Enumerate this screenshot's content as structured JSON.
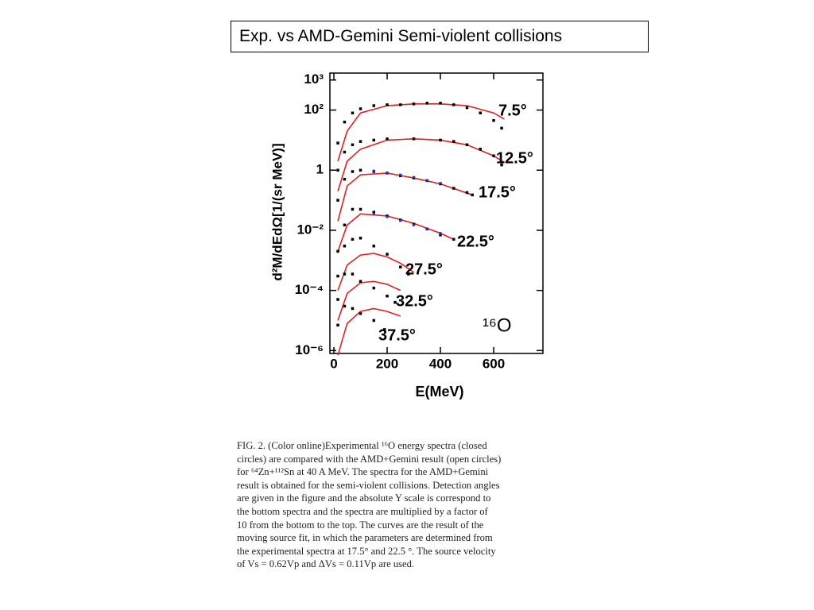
{
  "slide_title": "Exp. vs AMD-Gemini Semi-violent collisions",
  "chart_data": {
    "type": "scatter",
    "annotation": "¹⁶O",
    "x_label": "E(MeV)",
    "y_label": "d²M/dEdΩ[1/(sr MeV)]",
    "xlim": [
      -15,
      785
    ],
    "xticks": [
      0,
      200,
      400,
      600
    ],
    "ylim": [
      8e-07,
      1700
    ],
    "log_y": true,
    "yticks": [
      {
        "value": 1000,
        "label": "10³"
      },
      {
        "value": 100,
        "label": "10²"
      },
      1,
      {
        "value": 0.01,
        "label": "10⁻²"
      },
      {
        "value": 0.0001,
        "label": "10⁻⁴"
      },
      {
        "value": 1e-06,
        "label": "10⁻⁶"
      }
    ],
    "series": [
      {
        "name": "7.5°",
        "color": "#000000",
        "x": [
          15,
          40,
          70,
          100,
          150,
          200,
          250,
          300,
          350,
          400,
          450,
          500,
          550,
          600,
          630
        ],
        "values": [
          8,
          40,
          80,
          110,
          140,
          150,
          150,
          160,
          170,
          170,
          150,
          120,
          80,
          45,
          25
        ]
      },
      {
        "name": "12.5°",
        "color": "#000000",
        "x": [
          15,
          40,
          70,
          100,
          150,
          200,
          300,
          400,
          450,
          500,
          550,
          600,
          630
        ],
        "values": [
          1,
          4,
          7,
          9,
          10,
          11,
          11,
          10,
          9,
          7,
          5,
          3,
          1.5
        ]
      },
      {
        "name": "17.5°",
        "color": "#000000",
        "x": [
          15,
          40,
          70,
          100,
          150,
          200,
          250,
          300,
          350,
          400,
          450,
          500,
          520
        ],
        "values": [
          0.1,
          0.5,
          0.9,
          1,
          0.9,
          0.8,
          0.65,
          0.55,
          0.45,
          0.35,
          0.25,
          0.18,
          0.15
        ]
      },
      {
        "name": "22.5°",
        "color": "#000000",
        "x": [
          15,
          40,
          70,
          100,
          150,
          200,
          250,
          300,
          350,
          400,
          450
        ],
        "values": [
          0.002,
          0.015,
          0.05,
          0.05,
          0.04,
          0.03,
          0.022,
          0.016,
          0.011,
          0.007,
          0.005
        ]
      },
      {
        "name": "27.5°",
        "color": "#000000",
        "x": [
          15,
          40,
          70,
          100,
          150,
          200,
          250,
          280
        ],
        "values": [
          0.0003,
          0.003,
          0.005,
          0.0055,
          0.003,
          0.0016,
          0.0006,
          0.00035
        ]
      },
      {
        "name": "32.5°",
        "color": "#000000",
        "x": [
          15,
          40,
          70,
          100,
          150,
          200,
          230
        ],
        "values": [
          5e-05,
          0.00035,
          0.00035,
          0.0002,
          0.00012,
          6.5e-05,
          4e-05
        ]
      },
      {
        "name": "37.5°",
        "color": "#000000",
        "x": [
          15,
          40,
          70,
          100,
          150,
          190
        ],
        "values": [
          7e-06,
          3e-05,
          2.5e-05,
          1.7e-05,
          1e-05,
          5e-06
        ]
      }
    ],
    "fit_curves": [
      {
        "color": "#e02020",
        "x": [
          15,
          50,
          100,
          200,
          300,
          400,
          500,
          600,
          640
        ],
        "values": [
          2,
          20,
          80,
          140,
          160,
          160,
          140,
          80,
          50
        ]
      },
      {
        "color": "#e02020",
        "x": [
          15,
          50,
          100,
          200,
          300,
          400,
          500,
          600,
          640
        ],
        "values": [
          0.2,
          2,
          5,
          10,
          11,
          10,
          7,
          3,
          1.8
        ]
      },
      {
        "color": "#e02020",
        "x": [
          15,
          50,
          100,
          200,
          300,
          400,
          520
        ],
        "values": [
          0.02,
          0.3,
          0.7,
          0.8,
          0.55,
          0.35,
          0.15
        ]
      },
      {
        "color": "#e02020",
        "x": [
          15,
          50,
          100,
          200,
          300,
          400,
          450
        ],
        "values": [
          0.002,
          0.015,
          0.035,
          0.03,
          0.017,
          0.008,
          0.005
        ]
      },
      {
        "color": "#e02020",
        "x": [
          15,
          50,
          100,
          150,
          200,
          250,
          300
        ],
        "values": [
          0.0001,
          0.0007,
          0.0015,
          0.0017,
          0.0013,
          0.0008,
          0.0004
        ]
      },
      {
        "color": "#e02020",
        "x": [
          15,
          50,
          100,
          150,
          200,
          250
        ],
        "values": [
          1e-05,
          8e-05,
          0.00018,
          0.0002,
          0.00016,
          0.0001
        ]
      },
      {
        "color": "#e02020",
        "x": [
          15,
          50,
          100,
          150,
          200,
          250
        ],
        "values": [
          7e-07,
          8e-06,
          2e-05,
          2.5e-05,
          2e-05,
          1.4e-05
        ]
      }
    ],
    "amd_points": [
      {
        "color": "#2030e0",
        "x": [
          150,
          200,
          250,
          300,
          350,
          400
        ],
        "values": [
          0.95,
          0.8,
          0.7,
          0.58,
          0.45,
          0.37
        ]
      },
      {
        "color": "#2030e0",
        "x": [
          150,
          200,
          250,
          300,
          350,
          400
        ],
        "values": [
          0.035,
          0.028,
          0.021,
          0.015,
          0.011,
          0.008
        ]
      }
    ]
  },
  "caption": {
    "lines": [
      "FIG. 2.  (Color online)Experimental ¹⁶O energy spectra (closed",
      "circles) are compared with the AMD+Gemini result (open circles)",
      "for ⁶⁴Zn+¹¹²Sn at 40 A MeV. The spectra for the AMD+Gemini",
      "result is obtained for the semi-violent collisions.  Detection angles",
      "are given in the figure and the absolute Y scale is correspond to",
      "the bottom spectra and the spectra are multiplied by a factor of",
      "10 from the bottom to the top.  The curves are the result of the",
      "moving source fit, in which the parameters are determined from",
      "the experimental spectra at 17.5° and 22.5 °. The source velocity",
      "of Vs = 0.62Vp and ΔVs = 0.11Vp are used."
    ]
  }
}
